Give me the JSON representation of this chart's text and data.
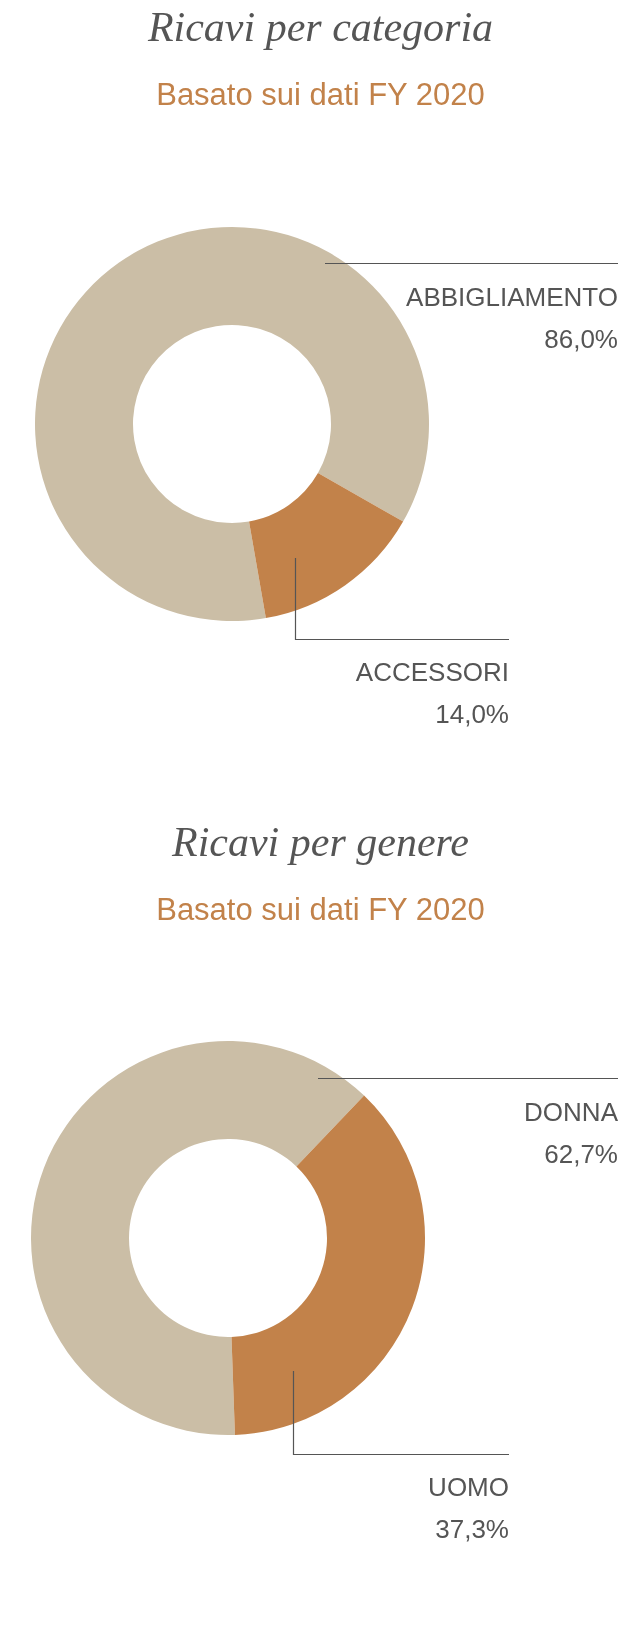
{
  "chart_data": [
    {
      "type": "donut",
      "title": "Ricavi per categoria",
      "subtitle": "Basato sui dati FY 2020",
      "categories": [
        "ABBIGLIAMENTO",
        "ACCESSORI"
      ],
      "values": [
        86.0,
        14.0
      ],
      "colors": [
        "#cbbea6",
        "#c2824a"
      ],
      "value_labels": [
        "86,0%",
        "14,0%"
      ]
    },
    {
      "type": "donut",
      "title": "Ricavi per genere",
      "subtitle": "Basato sui dati FY 2020",
      "categories": [
        "DONNA",
        "UOMO"
      ],
      "values": [
        62.7,
        37.3
      ],
      "colors": [
        "#cbbea6",
        "#c2824a"
      ],
      "value_labels": [
        "62,7%",
        "37,3%"
      ]
    }
  ]
}
